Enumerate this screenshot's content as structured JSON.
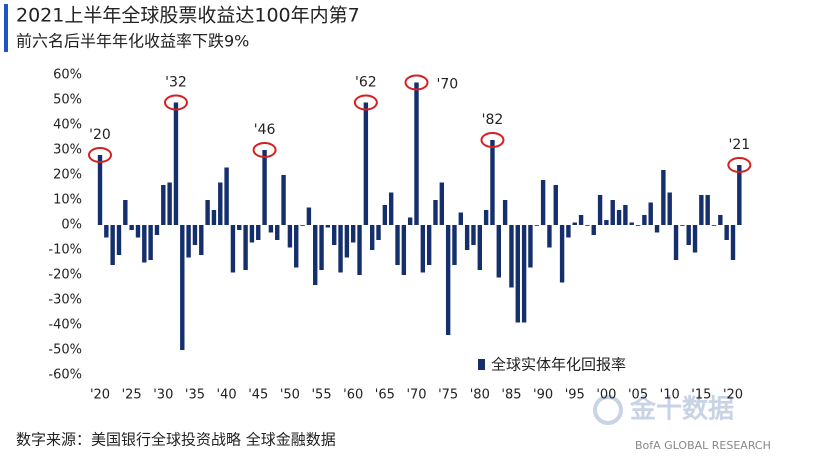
{
  "chart_data": {
    "type": "bar",
    "title": "2021上半年全球股票收益达100年内第7",
    "subtitle": "前六名后半年年化收益率下跌9%",
    "source": "数字来源：美国银行全球投资战略 全球金融数据",
    "watermark": "金十数据",
    "credit": "BofA GLOBAL RESEARCH",
    "series": [
      {
        "name": "全球实体年化回报率",
        "color": "#142f6b",
        "values": [
          28,
          -5,
          -16,
          -12,
          10,
          -2,
          -5,
          -15,
          -14,
          -4,
          16,
          17,
          49,
          -50,
          -13,
          -8,
          -12,
          10,
          6,
          17,
          23,
          -19,
          -2,
          -18,
          -7,
          -6,
          30,
          -3,
          -6,
          20,
          -9,
          -17,
          0,
          7,
          -24,
          -18,
          -1,
          -8,
          -19,
          -13,
          -7,
          -20,
          49,
          -10,
          -6,
          8,
          13,
          -16,
          -20,
          3,
          57,
          -19,
          -16,
          10,
          17,
          -44,
          -16,
          5,
          -10,
          -8,
          -18,
          6,
          34,
          -21,
          10,
          -25,
          -39,
          -39,
          -17,
          0,
          18,
          -9,
          16,
          -23,
          -5,
          1,
          4,
          0,
          -4,
          12,
          2,
          10,
          6,
          8,
          1,
          0,
          4,
          9,
          -3,
          22,
          13,
          -14,
          0,
          -8,
          -11,
          12,
          12,
          0,
          4,
          -6,
          -14,
          24
        ]
      }
    ],
    "categories": [
      "'20",
      null,
      null,
      null,
      null,
      "'25",
      null,
      null,
      null,
      null,
      "'30",
      null,
      null,
      null,
      null,
      "'35",
      null,
      null,
      null,
      null,
      "'40",
      null,
      null,
      null,
      null,
      "'45",
      null,
      null,
      null,
      null,
      "'50",
      null,
      null,
      null,
      null,
      "'55",
      null,
      null,
      null,
      null,
      "'60",
      null,
      null,
      null,
      null,
      "'65",
      null,
      null,
      null,
      null,
      "'70",
      null,
      null,
      null,
      null,
      "'75",
      null,
      null,
      null,
      null,
      "'80",
      null,
      null,
      null,
      null,
      "'85",
      null,
      null,
      null,
      null,
      "'90",
      null,
      null,
      null,
      null,
      "'95",
      null,
      null,
      null,
      null,
      "'00",
      null,
      null,
      null,
      null,
      "'05",
      null,
      null,
      null,
      null,
      "'10",
      null,
      null,
      null,
      null,
      "'15",
      null,
      null,
      null,
      null,
      "'20",
      null
    ],
    "annotations": [
      {
        "text": "'20",
        "at": 0
      },
      {
        "text": "'32",
        "at": 12
      },
      {
        "text": "'46",
        "at": 26
      },
      {
        "text": "'62",
        "at": 42
      },
      {
        "text": "'70",
        "at": 50
      },
      {
        "text": "'82",
        "at": 62
      },
      {
        "text": "'21",
        "at": 101
      }
    ],
    "ylim": [
      -60,
      60
    ],
    "yticks": [
      {
        "value": 60,
        "label": "60%"
      },
      {
        "value": 50,
        "label": "50%"
      },
      {
        "value": 40,
        "label": "40%"
      },
      {
        "value": 30,
        "label": "30%"
      },
      {
        "value": 20,
        "label": "20%"
      },
      {
        "value": 10,
        "label": "10%"
      },
      {
        "value": 0,
        "label": "0%"
      },
      {
        "value": -10,
        "label": "-10%"
      },
      {
        "value": -20,
        "label": "-20%"
      },
      {
        "value": -30,
        "label": "-30%"
      },
      {
        "value": -40,
        "label": "-40%"
      },
      {
        "value": -50,
        "label": "-50%"
      },
      {
        "value": -60,
        "label": "-60%"
      }
    ],
    "legend": "lower right",
    "grid": false
  }
}
